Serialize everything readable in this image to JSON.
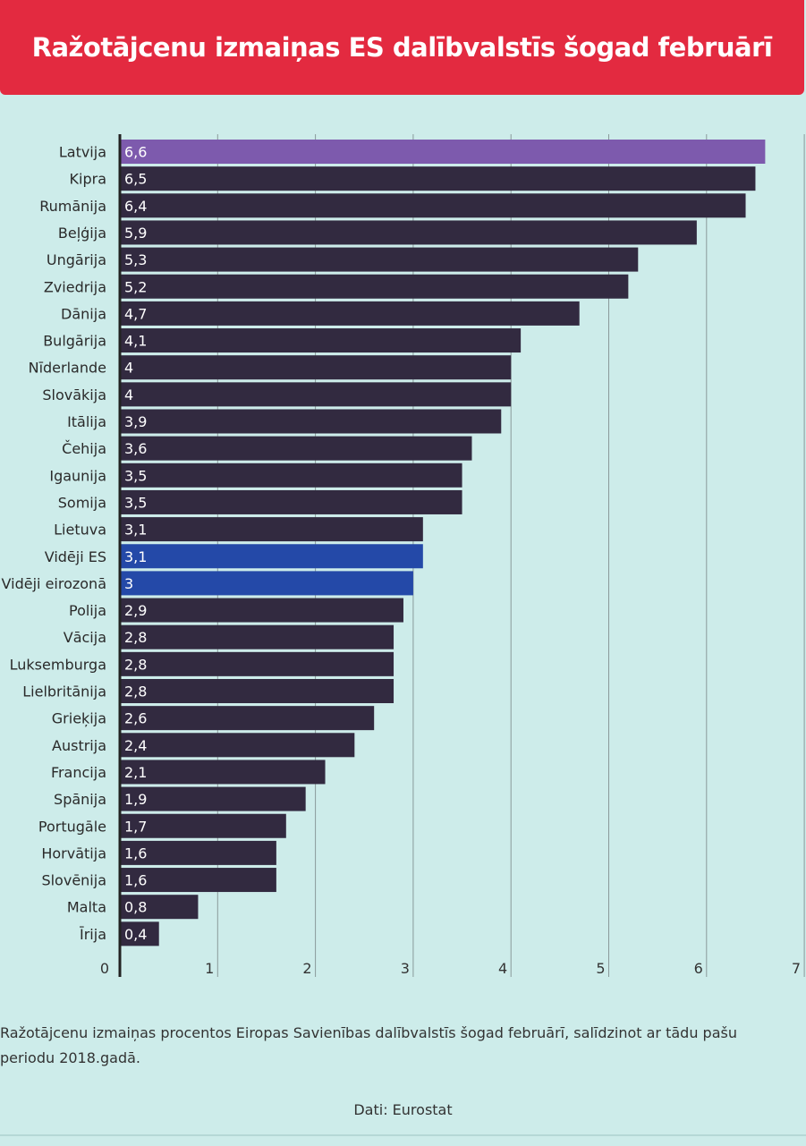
{
  "header": {
    "title": "Ražotājcenu izmaiņas ES dalībvalstīs šogad februārī"
  },
  "chart_data": {
    "type": "bar",
    "orientation": "horizontal",
    "title": "Ražotājcenu izmaiņas ES dalībvalstīs šogad februārī",
    "xlabel": "",
    "ylabel": "",
    "xlim": [
      0,
      7
    ],
    "xticks": [
      0,
      1,
      2,
      3,
      4,
      5,
      6,
      7
    ],
    "grid": true,
    "categories": [
      "Latvija",
      "Kipra",
      "Rumānija",
      "Beļģija",
      "Ungārija",
      "Zviedrija",
      "Dānija",
      "Bulgārija",
      "Nīderlande",
      "Slovākija",
      "Itālija",
      "Čehija",
      "Igaunija",
      "Somija",
      "Lietuva",
      "Vidēji ES",
      "Vidēji eirozonā",
      "Polija",
      "Vācija",
      "Luksemburga",
      "Lielbritānija",
      "Grieķija",
      "Austrija",
      "Francija",
      "Spānija",
      "Portugāle",
      "Horvātija",
      "Slovēnija",
      "Malta",
      "Īrija"
    ],
    "values": [
      6.6,
      6.5,
      6.4,
      5.9,
      5.3,
      5.2,
      4.7,
      4.1,
      4,
      4,
      3.9,
      3.6,
      3.5,
      3.5,
      3.1,
      3.1,
      3,
      2.9,
      2.8,
      2.8,
      2.8,
      2.6,
      2.4,
      2.1,
      1.9,
      1.7,
      1.6,
      1.6,
      0.8,
      0.4
    ],
    "value_labels": [
      "6,6",
      "6,5",
      "6,4",
      "5,9",
      "5,3",
      "5,2",
      "4,7",
      "4,1",
      "4",
      "4",
      "3,9",
      "3,6",
      "3,5",
      "3,5",
      "3,1",
      "3,1",
      "3",
      "2,9",
      "2,8",
      "2,8",
      "2,8",
      "2,6",
      "2,4",
      "2,1",
      "1,9",
      "1,7",
      "1,6",
      "1,6",
      "0,8",
      "0,4"
    ],
    "colors": {
      "default": "#322a40",
      "highlight_latvia": "#7d5aad",
      "average": "#2449a8",
      "grid": "#8a9a9a",
      "axis": "#222222"
    },
    "highlight": {
      "Latvija": "#7d5aad",
      "Vidēji ES": "#2449a8",
      "Vidēji eirozonā": "#2449a8"
    }
  },
  "footer": {
    "note": "Ražotājcenu izmaiņas procentos Eiropas Savienības dalībvalstīs šogad februārī, salīdzinot ar tādu pašu periodu 2018.gadā.",
    "source": "Dati: Eurostat"
  }
}
